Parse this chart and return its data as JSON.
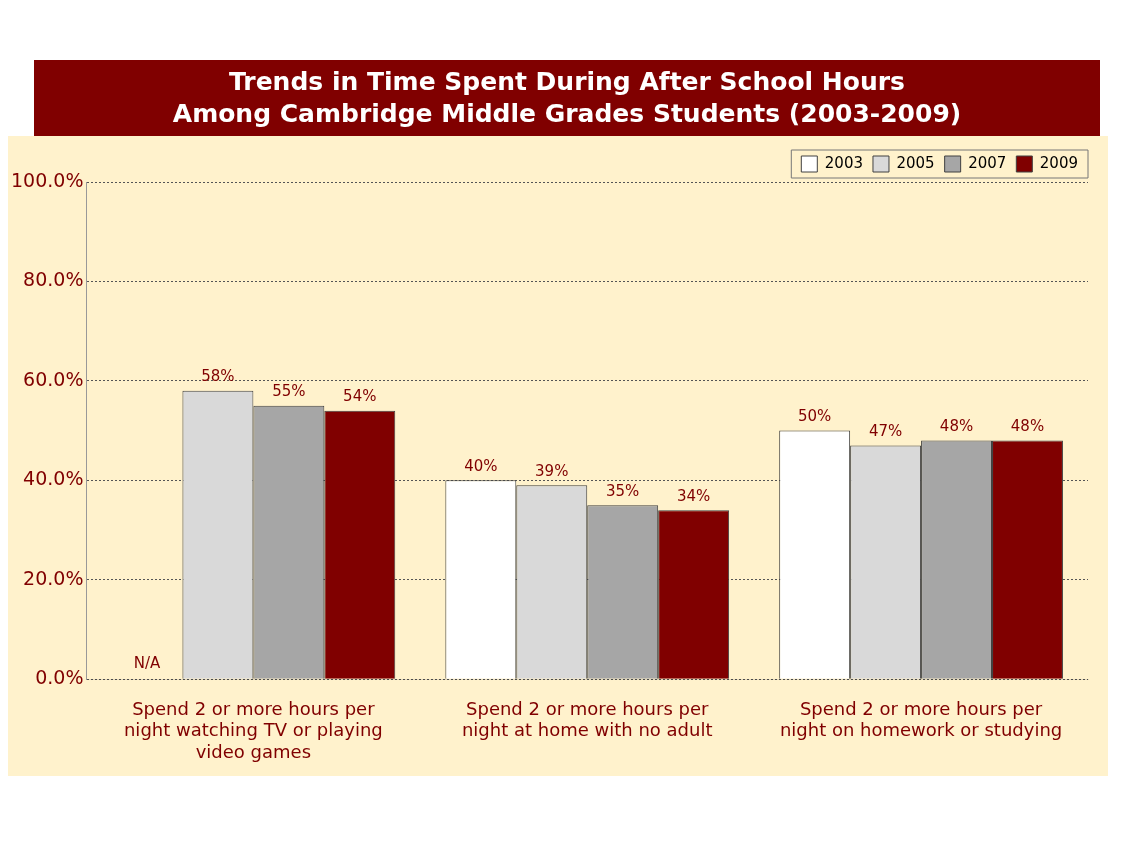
{
  "chart_data": {
    "type": "bar",
    "title": "Trends in Time Spent During After School Hours\nAmong Cambridge Middle Grades Students (2003-2009)",
    "categories": [
      "Spend 2 or more hours per night watching TV or playing video games",
      "Spend 2 or more hours per night at home with no adult",
      "Spend 2 or more hours per night on homework or studying"
    ],
    "series": [
      {
        "name": "2003",
        "color": "#ffffff",
        "values": [
          null,
          40,
          50
        ],
        "value_labels": [
          "N/A",
          "40%",
          "50%"
        ]
      },
      {
        "name": "2005",
        "color": "#d9d9d9",
        "values": [
          58,
          39,
          47
        ],
        "value_labels": [
          "58%",
          "39%",
          "47%"
        ]
      },
      {
        "name": "2007",
        "color": "#a6a6a6",
        "values": [
          55,
          35,
          48
        ],
        "value_labels": [
          "55%",
          "35%",
          "48%"
        ]
      },
      {
        "name": "2009",
        "color": "#800000",
        "values": [
          54,
          34,
          48
        ],
        "value_labels": [
          "54%",
          "34%",
          "48%"
        ]
      }
    ],
    "ylim": [
      0,
      100
    ],
    "yticks": [
      {
        "value": 0,
        "label": "0.0%"
      },
      {
        "value": 20,
        "label": "20.0%"
      },
      {
        "value": 40,
        "label": "40.0%"
      },
      {
        "value": 60,
        "label": "60.0%"
      },
      {
        "value": 80,
        "label": "80.0%"
      },
      {
        "value": 100,
        "label": "100.0%"
      }
    ],
    "grid": "y",
    "legend": "top right"
  }
}
